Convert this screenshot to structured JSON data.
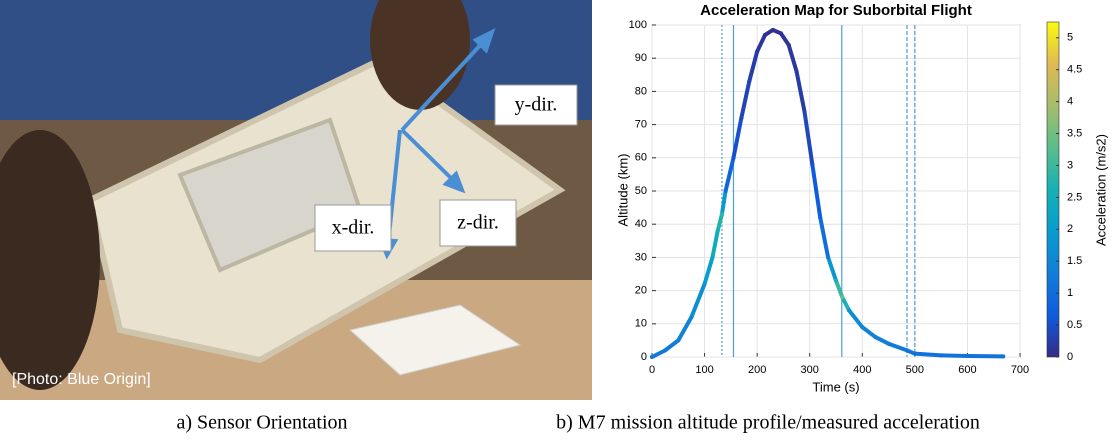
{
  "photo": {
    "labels": [
      "y-dir.",
      "x-dir.",
      "z-dir."
    ],
    "credit": "[Photo: Blue Origin]"
  },
  "captions": [
    "a) Sensor Orientation",
    "b) M7 mission altitude profile/measured acceleration"
  ],
  "chart_data": {
    "type": "line",
    "title": "Acceleration Map for Suborbital Flight",
    "xlabel": "Time (s)",
    "ylabel": "Altitude (km)",
    "x": [
      0,
      25,
      50,
      75,
      100,
      115,
      125,
      133,
      140,
      155,
      170,
      185,
      200,
      215,
      230,
      245,
      260,
      275,
      290,
      305,
      320,
      335,
      350,
      362,
      375,
      400,
      425,
      450,
      485,
      500,
      550,
      600,
      668
    ],
    "values": [
      0,
      2,
      5,
      12,
      22,
      30,
      38,
      43,
      50,
      60,
      72,
      83,
      92,
      97,
      98.5,
      97.5,
      94,
      86,
      74,
      58,
      42,
      30,
      23,
      18,
      14,
      9,
      6,
      4,
      2,
      1,
      0.5,
      0.3,
      0.2
    ],
    "acceleration": [
      1.2,
      1.2,
      1.3,
      1.5,
      1.8,
      2.2,
      2.6,
      2.8,
      1.0,
      0.6,
      0.4,
      0.3,
      0.2,
      0.1,
      0.1,
      0.1,
      0.15,
      0.2,
      0.3,
      0.5,
      0.8,
      1.2,
      2.5,
      3.4,
      1.8,
      1.5,
      1.4,
      1.3,
      1.2,
      1.1,
      1.1,
      1.1,
      1.1
    ],
    "vlines": [
      {
        "x": 133,
        "style": "dotted"
      },
      {
        "x": 155,
        "style": "solid"
      },
      {
        "x": 361,
        "style": "solid"
      },
      {
        "x": 485,
        "style": "dashed"
      },
      {
        "x": 500,
        "style": "dashed"
      }
    ],
    "vline_color": "#4a9fd8",
    "xlim": [
      0,
      700
    ],
    "xticks": [
      0,
      100,
      200,
      300,
      400,
      500,
      600,
      700
    ],
    "ylim": [
      0,
      100
    ],
    "yticks": [
      0,
      10,
      20,
      30,
      40,
      50,
      60,
      70,
      80,
      90,
      100
    ],
    "grid": true,
    "colorbar": {
      "label": "Acceleration (m/s2)",
      "lim": [
        0,
        5.2
      ],
      "ticks": [
        0,
        0.5,
        1,
        1.5,
        2,
        2.5,
        3,
        3.5,
        4,
        4.5,
        5
      ]
    }
  }
}
